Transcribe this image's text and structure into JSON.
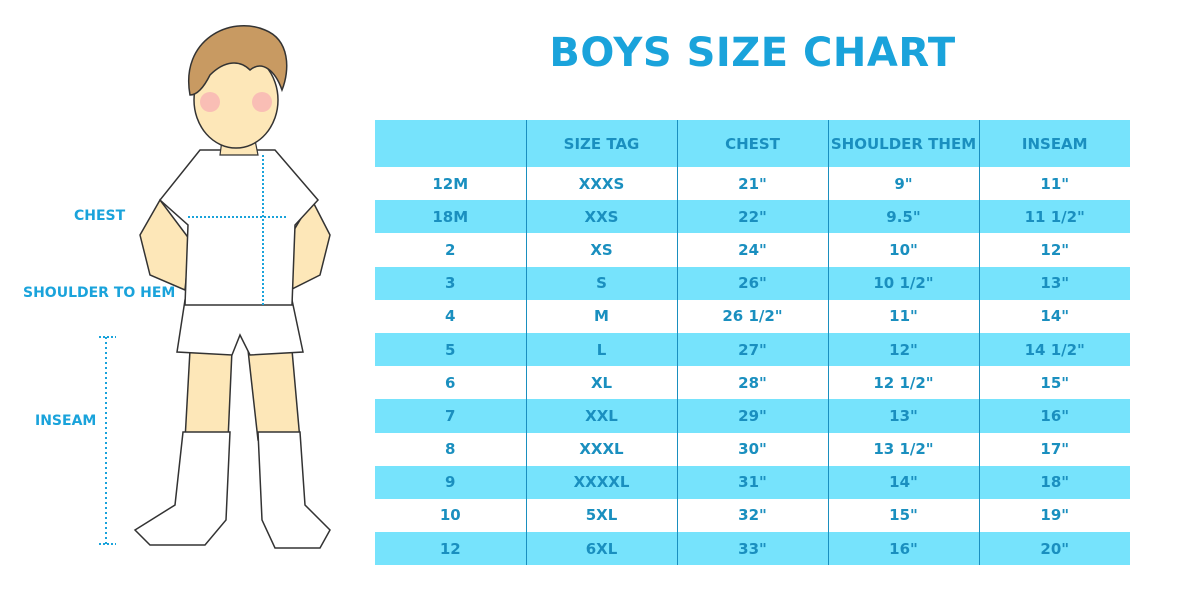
{
  "title": "BOYS SIZE CHART",
  "colors": {
    "accent": "#1aa3db",
    "row_fill": "#76e3fc",
    "text": "#1a8fbf"
  },
  "figure_labels": {
    "chest": "CHEST",
    "shoulder_to_hem": "SHOULDER TO HEM",
    "inseam": "INSEAM"
  },
  "table": {
    "headers": [
      "",
      "SIZE TAG",
      "CHEST",
      "SHOULDER THEM",
      "INSEAM"
    ],
    "rows": [
      [
        "12M",
        "XXXS",
        "21\"",
        "9\"",
        "11\""
      ],
      [
        "18M",
        "XXS",
        "22\"",
        "9.5\"",
        "11 1/2\""
      ],
      [
        "2",
        "XS",
        "24\"",
        "10\"",
        "12\""
      ],
      [
        "3",
        "S",
        "26\"",
        "10 1/2\"",
        "13\""
      ],
      [
        "4",
        "M",
        "26 1/2\"",
        "11\"",
        "14\""
      ],
      [
        "5",
        "L",
        "27\"",
        "12\"",
        "14 1/2\""
      ],
      [
        "6",
        "XL",
        "28\"",
        "12 1/2\"",
        "15\""
      ],
      [
        "7",
        "XXL",
        "29\"",
        "13\"",
        "16\""
      ],
      [
        "8",
        "XXXL",
        "30\"",
        "13 1/2\"",
        "17\""
      ],
      [
        "9",
        "XXXXL",
        "31\"",
        "14\"",
        "18\""
      ],
      [
        "10",
        "5XL",
        "32\"",
        "15\"",
        "19\""
      ],
      [
        "12",
        "6XL",
        "33\"",
        "16\"",
        "20\""
      ]
    ]
  }
}
